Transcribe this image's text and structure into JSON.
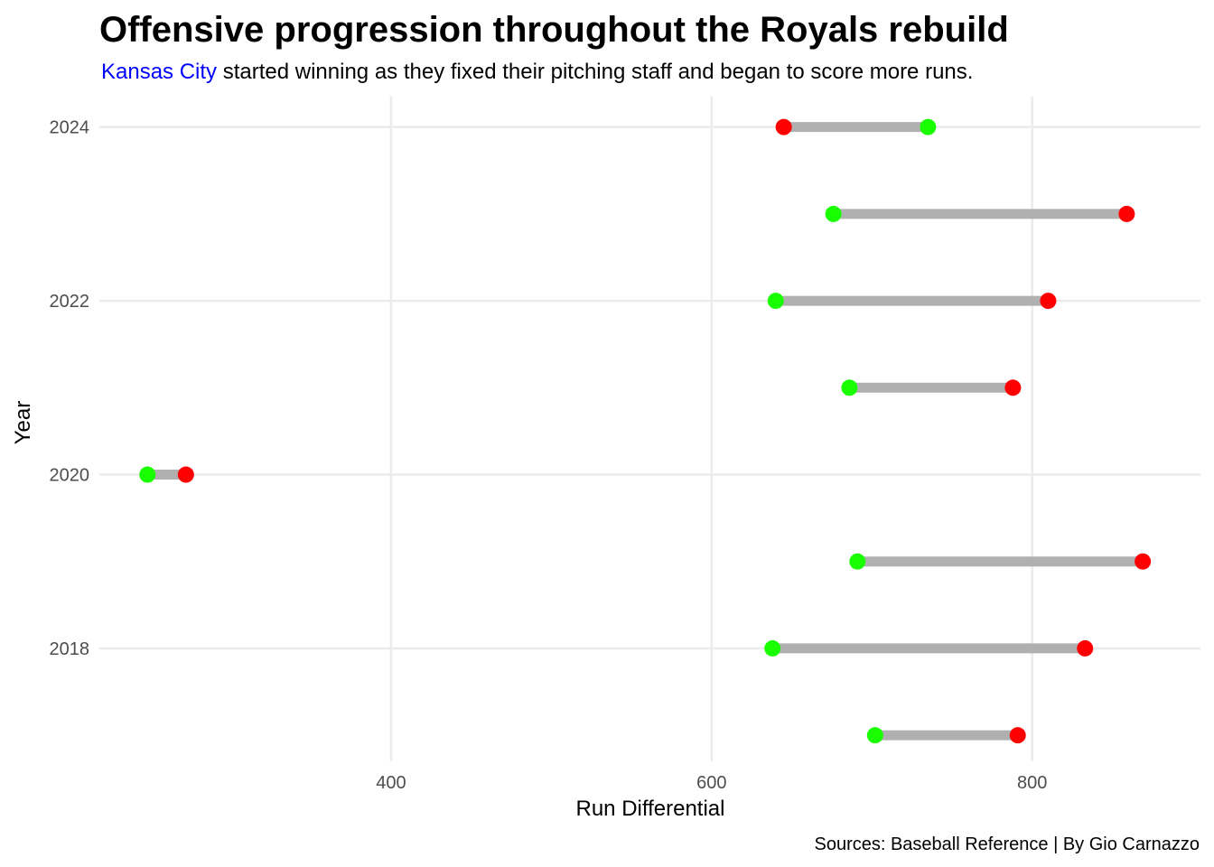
{
  "chart_data": {
    "type": "dumbbell",
    "title": "Offensive progression throughout the Royals rebuild",
    "subtitle": {
      "highlight": "Kansas City",
      "rest": " started winning as they fixed their pitching staff and began to score more runs."
    },
    "xlabel": "Run Differential",
    "ylabel": "Year",
    "caption": "Sources: Baseball Reference | By Gio Carnazzo",
    "xlim": [
      218,
      905
    ],
    "ylim": [
      2016.7,
      2024.35
    ],
    "x_ticks": [
      400,
      600,
      800
    ],
    "y_ticks": [
      2018,
      2020,
      2022,
      2024
    ],
    "grid": true,
    "rows": [
      {
        "year": 2017,
        "green": 702,
        "red": 791
      },
      {
        "year": 2018,
        "green": 638,
        "red": 833
      },
      {
        "year": 2019,
        "green": 691,
        "red": 869
      },
      {
        "year": 2020,
        "green": 248,
        "red": 272
      },
      {
        "year": 2021,
        "green": 686,
        "red": 788
      },
      {
        "year": 2022,
        "green": 640,
        "red": 810
      },
      {
        "year": 2023,
        "green": 676,
        "red": 859
      },
      {
        "year": 2024,
        "green": 735,
        "red": 645
      }
    ],
    "colors": {
      "green_point": "#1aff00",
      "red_point": "#ff0000",
      "segment": "#b0b0b0",
      "subtitle_highlight": "#0000ff"
    }
  }
}
